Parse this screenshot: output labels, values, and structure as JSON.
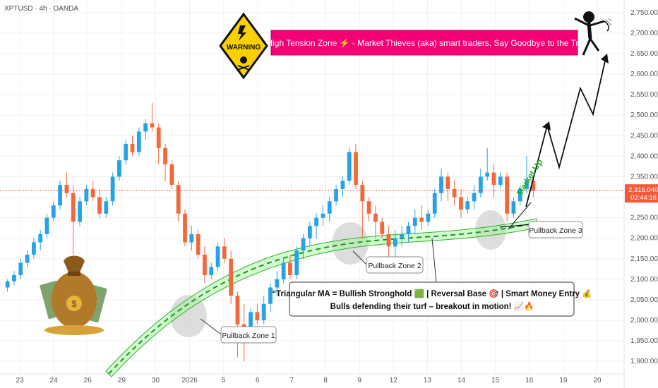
{
  "symbol_title": "XPTUSD · 4h · OANDA",
  "colors": {
    "bull": "#26a3e8",
    "bear": "#f2683a",
    "ma_band": "#7fe07a",
    "ma_line": "#2ab52a",
    "banner_bg": "#f40075",
    "price_tag": "#f05a3a",
    "grid": "#f0f0f0"
  },
  "annotations": {
    "banner": "⚠️ High Tension Zone ⚡ - Market Thieves (aka) smart traders, Say Goodbye to the Trend!",
    "warning_sign": "WARNING",
    "market_up": "Market Up",
    "pullback_1": "Pullback Zone 1",
    "pullback_2": "Pullback Zone 2",
    "pullback_3": "Pullback Zone 3",
    "quote_line_1": "“Triangular MA = Bullish Stronghold 🟩 | Reversal Base 🎯 | Smart Money Entry 💰",
    "quote_line_2": "Bulls defending their turf – breakout in motion! 📈🔥"
  },
  "price_tag": {
    "price": "2,316.040",
    "countdown": "02:44:18"
  },
  "chart_data": {
    "type": "candlestick",
    "title": "XPTUSD · 4h · OANDA",
    "ylim": [
      1890,
      2760
    ],
    "y_ticks": [
      "2,750.000",
      "2,700.000",
      "2,650.000",
      "2,600.000",
      "2,550.000",
      "2,500.000",
      "2,450.000",
      "2,400.000",
      "2,350.000",
      "2,300.000",
      "2,250.000",
      "2,200.000",
      "2,150.000",
      "2,100.000",
      "2,050.000",
      "2,000.000",
      "1,950.000",
      "1,900.000"
    ],
    "x_ticks": [
      "23",
      "24",
      "26",
      "29",
      "30",
      "2026",
      "5",
      "6",
      "7",
      "8",
      "9",
      "12",
      "13",
      "14",
      "15",
      "16",
      "19",
      "20"
    ],
    "last_price": 2316.04,
    "candles": [
      {
        "o": 2080,
        "h": 2100,
        "l": 2070,
        "c": 2095
      },
      {
        "o": 2095,
        "h": 2120,
        "l": 2085,
        "c": 2110
      },
      {
        "o": 2110,
        "h": 2150,
        "l": 2100,
        "c": 2140
      },
      {
        "o": 2140,
        "h": 2170,
        "l": 2130,
        "c": 2160
      },
      {
        "o": 2160,
        "h": 2200,
        "l": 2150,
        "c": 2190
      },
      {
        "o": 2190,
        "h": 2220,
        "l": 2170,
        "c": 2210
      },
      {
        "o": 2210,
        "h": 2260,
        "l": 2200,
        "c": 2250
      },
      {
        "o": 2250,
        "h": 2290,
        "l": 2240,
        "c": 2280
      },
      {
        "o": 2280,
        "h": 2340,
        "l": 2270,
        "c": 2330
      },
      {
        "o": 2330,
        "h": 2360,
        "l": 2300,
        "c": 2310
      },
      {
        "o": 2310,
        "h": 2330,
        "l": 2160,
        "c": 2240
      },
      {
        "o": 2240,
        "h": 2300,
        "l": 2230,
        "c": 2290
      },
      {
        "o": 2290,
        "h": 2330,
        "l": 2280,
        "c": 2320
      },
      {
        "o": 2320,
        "h": 2340,
        "l": 2290,
        "c": 2300
      },
      {
        "o": 2300,
        "h": 2320,
        "l": 2250,
        "c": 2260
      },
      {
        "o": 2260,
        "h": 2300,
        "l": 2250,
        "c": 2290
      },
      {
        "o": 2290,
        "h": 2360,
        "l": 2280,
        "c": 2350
      },
      {
        "o": 2350,
        "h": 2400,
        "l": 2340,
        "c": 2390
      },
      {
        "o": 2390,
        "h": 2440,
        "l": 2380,
        "c": 2430
      },
      {
        "o": 2430,
        "h": 2450,
        "l": 2400,
        "c": 2410
      },
      {
        "o": 2410,
        "h": 2470,
        "l": 2400,
        "c": 2460
      },
      {
        "o": 2460,
        "h": 2490,
        "l": 2440,
        "c": 2480
      },
      {
        "o": 2480,
        "h": 2530,
        "l": 2460,
        "c": 2470
      },
      {
        "o": 2470,
        "h": 2480,
        "l": 2380,
        "c": 2420
      },
      {
        "o": 2420,
        "h": 2430,
        "l": 2340,
        "c": 2380
      },
      {
        "o": 2380,
        "h": 2390,
        "l": 2320,
        "c": 2330
      },
      {
        "o": 2330,
        "h": 2340,
        "l": 2240,
        "c": 2260
      },
      {
        "o": 2260,
        "h": 2270,
        "l": 2180,
        "c": 2190
      },
      {
        "o": 2190,
        "h": 2230,
        "l": 2170,
        "c": 2210
      },
      {
        "o": 2210,
        "h": 2220,
        "l": 2150,
        "c": 2160
      },
      {
        "o": 2160,
        "h": 2180,
        "l": 2090,
        "c": 2110
      },
      {
        "o": 2110,
        "h": 2140,
        "l": 2100,
        "c": 2130
      },
      {
        "o": 2130,
        "h": 2190,
        "l": 2120,
        "c": 2180
      },
      {
        "o": 2180,
        "h": 2200,
        "l": 2140,
        "c": 2150
      },
      {
        "o": 2150,
        "h": 2170,
        "l": 2040,
        "c": 2060
      },
      {
        "o": 2060,
        "h": 2070,
        "l": 1910,
        "c": 1990
      },
      {
        "o": 1990,
        "h": 2040,
        "l": 1900,
        "c": 1960
      },
      {
        "o": 1960,
        "h": 2030,
        "l": 1950,
        "c": 2020
      },
      {
        "o": 2020,
        "h": 2040,
        "l": 1990,
        "c": 2000
      },
      {
        "o": 2000,
        "h": 2060,
        "l": 1990,
        "c": 2040
      },
      {
        "o": 2040,
        "h": 2090,
        "l": 2020,
        "c": 2080
      },
      {
        "o": 2080,
        "h": 2120,
        "l": 2060,
        "c": 2100
      },
      {
        "o": 2100,
        "h": 2150,
        "l": 2090,
        "c": 2140
      },
      {
        "o": 2140,
        "h": 2160,
        "l": 2100,
        "c": 2110
      },
      {
        "o": 2110,
        "h": 2180,
        "l": 2100,
        "c": 2170
      },
      {
        "o": 2170,
        "h": 2210,
        "l": 2150,
        "c": 2200
      },
      {
        "o": 2200,
        "h": 2240,
        "l": 2180,
        "c": 2230
      },
      {
        "o": 2230,
        "h": 2260,
        "l": 2200,
        "c": 2250
      },
      {
        "o": 2250,
        "h": 2280,
        "l": 2230,
        "c": 2260
      },
      {
        "o": 2260,
        "h": 2300,
        "l": 2240,
        "c": 2290
      },
      {
        "o": 2290,
        "h": 2330,
        "l": 2280,
        "c": 2320
      },
      {
        "o": 2320,
        "h": 2350,
        "l": 2300,
        "c": 2340
      },
      {
        "o": 2340,
        "h": 2420,
        "l": 2330,
        "c": 2410
      },
      {
        "o": 2410,
        "h": 2430,
        "l": 2320,
        "c": 2330
      },
      {
        "o": 2330,
        "h": 2340,
        "l": 2200,
        "c": 2290
      },
      {
        "o": 2290,
        "h": 2300,
        "l": 2240,
        "c": 2260
      },
      {
        "o": 2260,
        "h": 2280,
        "l": 2200,
        "c": 2240
      },
      {
        "o": 2240,
        "h": 2250,
        "l": 2200,
        "c": 2210
      },
      {
        "o": 2210,
        "h": 2230,
        "l": 2150,
        "c": 2180
      },
      {
        "o": 2180,
        "h": 2220,
        "l": 2140,
        "c": 2200
      },
      {
        "o": 2200,
        "h": 2230,
        "l": 2180,
        "c": 2210
      },
      {
        "o": 2210,
        "h": 2240,
        "l": 2190,
        "c": 2230
      },
      {
        "o": 2230,
        "h": 2270,
        "l": 2210,
        "c": 2250
      },
      {
        "o": 2250,
        "h": 2280,
        "l": 2220,
        "c": 2240
      },
      {
        "o": 2240,
        "h": 2270,
        "l": 2230,
        "c": 2260
      },
      {
        "o": 2260,
        "h": 2320,
        "l": 2250,
        "c": 2310
      },
      {
        "o": 2310,
        "h": 2370,
        "l": 2290,
        "c": 2350
      },
      {
        "o": 2350,
        "h": 2360,
        "l": 2290,
        "c": 2320
      },
      {
        "o": 2320,
        "h": 2340,
        "l": 2280,
        "c": 2300
      },
      {
        "o": 2300,
        "h": 2320,
        "l": 2250,
        "c": 2270
      },
      {
        "o": 2270,
        "h": 2300,
        "l": 2260,
        "c": 2290
      },
      {
        "o": 2290,
        "h": 2330,
        "l": 2270,
        "c": 2310
      },
      {
        "o": 2310,
        "h": 2370,
        "l": 2300,
        "c": 2350
      },
      {
        "o": 2350,
        "h": 2420,
        "l": 2340,
        "c": 2360
      },
      {
        "o": 2360,
        "h": 2380,
        "l": 2300,
        "c": 2330
      },
      {
        "o": 2330,
        "h": 2360,
        "l": 2320,
        "c": 2350
      },
      {
        "o": 2350,
        "h": 2360,
        "l": 2240,
        "c": 2260
      },
      {
        "o": 2260,
        "h": 2300,
        "l": 2250,
        "c": 2290
      },
      {
        "o": 2290,
        "h": 2330,
        "l": 2280,
        "c": 2320
      },
      {
        "o": 2320,
        "h": 2400,
        "l": 2310,
        "c": 2340
      },
      {
        "o": 2340,
        "h": 2350,
        "l": 2300,
        "c": 2316
      }
    ]
  }
}
